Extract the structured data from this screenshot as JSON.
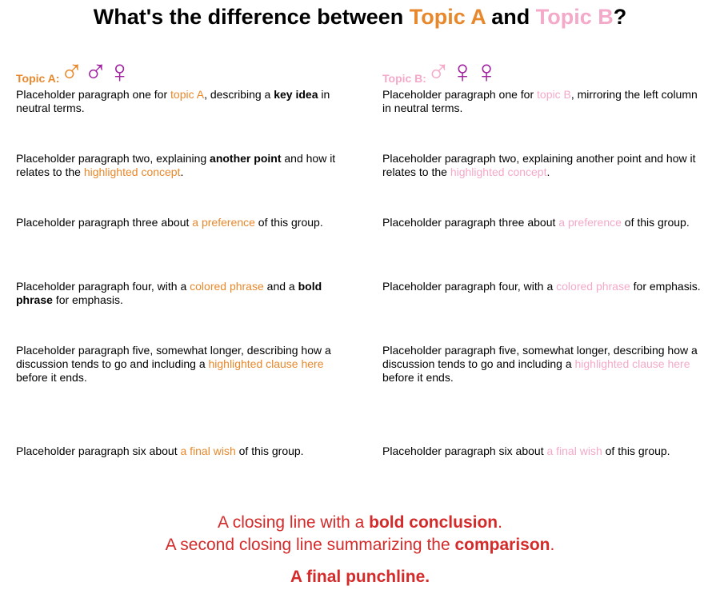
{
  "header": {
    "title": [
      {
        "text": "What's the difference between "
      },
      {
        "text": "Topic A",
        "color": "#e8882c"
      },
      {
        "text": " and "
      },
      {
        "text": "Topic B",
        "color": "#f4a9c9"
      },
      {
        "text": "?"
      }
    ]
  },
  "left": {
    "label": "Topic A:",
    "label_color": "#e8882c",
    "symbols": [
      "♂",
      "♂♀"
    ],
    "symbol_colors": [
      "#e8882c",
      "#a020a0"
    ],
    "paragraphs": [
      [
        {
          "text": "Placeholder paragraph one for "
        },
        {
          "text": "topic A",
          "color": "#e8882c"
        },
        {
          "text": ", describing a "
        },
        {
          "text": "key idea",
          "bold": true
        },
        {
          "text": " in neutral terms."
        }
      ],
      [
        {
          "text": "Placeholder paragraph two, explaining "
        },
        {
          "text": "another point",
          "bold": true
        },
        {
          "text": " and how it relates to the "
        },
        {
          "text": "highlighted concept",
          "color": "#e8882c"
        },
        {
          "text": "."
        }
      ],
      [
        {
          "text": "Placeholder paragraph three about "
        },
        {
          "text": "a preference",
          "color": "#e8882c"
        },
        {
          "text": " of this group."
        }
      ],
      [
        {
          "text": "Placeholder paragraph four, with a "
        },
        {
          "text": "colored phrase",
          "color": "#e8882c"
        },
        {
          "text": " and a "
        },
        {
          "text": "bold phrase",
          "bold": true
        },
        {
          "text": " for emphasis."
        }
      ],
      [
        {
          "text": "Placeholder paragraph five, somewhat longer, describing how a discussion tends to go and including a "
        },
        {
          "text": "highlighted clause here",
          "color": "#e8882c"
        },
        {
          "text": " before it ends."
        }
      ],
      [
        {
          "text": "Placeholder paragraph six about "
        },
        {
          "text": "a final wish",
          "color": "#e8882c"
        },
        {
          "text": " of this group."
        }
      ]
    ]
  },
  "right": {
    "label": "Topic B:",
    "label_color": "#f4a9c9",
    "symbols": [
      "♂",
      "♀♀"
    ],
    "symbol_colors": [
      "#f4a9c9",
      "#a020a0"
    ],
    "paragraphs": [
      [
        {
          "text": "Placeholder paragraph one for "
        },
        {
          "text": "topic B",
          "color": "#f4a9c9"
        },
        {
          "text": ", mirroring the left column in neutral terms."
        }
      ],
      [
        {
          "text": "Placeholder paragraph two, explaining another point and how it relates to the "
        },
        {
          "text": "highlighted concept",
          "color": "#f4a9c9"
        },
        {
          "text": "."
        }
      ],
      [
        {
          "text": "Placeholder paragraph three about "
        },
        {
          "text": "a preference",
          "color": "#f4a9c9"
        },
        {
          "text": " of this group."
        }
      ],
      [
        {
          "text": "Placeholder paragraph four, with a "
        },
        {
          "text": "colored phrase",
          "color": "#f4a9c9"
        },
        {
          "text": " for emphasis."
        }
      ],
      [
        {
          "text": "Placeholder paragraph five, somewhat longer, describing how a discussion tends to go and including a "
        },
        {
          "text": "highlighted clause here",
          "color": "#f4a9c9"
        },
        {
          "text": " before it ends."
        }
      ],
      [
        {
          "text": "Placeholder paragraph six about "
        },
        {
          "text": "a final wish",
          "color": "#f4a9c9"
        },
        {
          "text": " of this group."
        }
      ]
    ]
  },
  "footer": {
    "lines": [
      [
        {
          "text": "A closing line with a "
        },
        {
          "text": "bold conclusion",
          "bold": true
        },
        {
          "text": "."
        }
      ],
      [
        {
          "text": "A second closing line summarizing the "
        },
        {
          "text": "comparison",
          "bold": true
        },
        {
          "text": "."
        }
      ],
      [
        {
          "text": "A final punchline.",
          "bold": true
        }
      ]
    ],
    "color": "#d42a2a"
  }
}
